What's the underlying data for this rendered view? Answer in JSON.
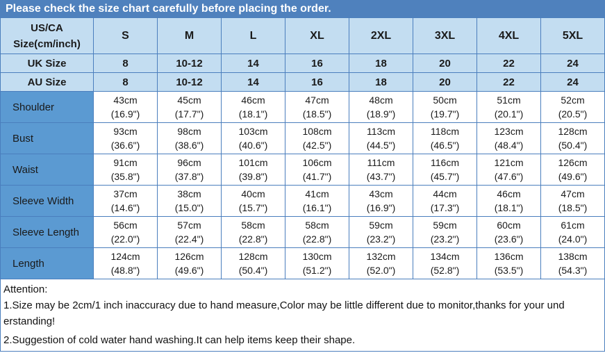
{
  "banner": {
    "text": "Please check the size chart carefully before placing the order."
  },
  "colors": {
    "banner_bg": "#4f81bd",
    "header_cell_bg": "#c3ddf1",
    "label_cell_bg": "#5b9ad2",
    "grid_border": "#4a7ebd",
    "data_cell_bg": "#ffffff"
  },
  "table": {
    "corner_lines": [
      "US/CA",
      "Size(cm/inch)"
    ],
    "size_columns": [
      "S",
      "M",
      "L",
      "XL",
      "2XL",
      "3XL",
      "4XL",
      "5XL"
    ],
    "uk_row": {
      "label": "UK Size",
      "values": [
        "8",
        "10-12",
        "14",
        "16",
        "18",
        "20",
        "22",
        "24"
      ]
    },
    "au_row": {
      "label": "AU Size",
      "values": [
        "8",
        "10-12",
        "14",
        "16",
        "18",
        "20",
        "22",
        "24"
      ]
    },
    "measurement_rows": [
      {
        "label": "Shoulder",
        "values": [
          {
            "cm": "43cm",
            "inch": "(16.9\")"
          },
          {
            "cm": "45cm",
            "inch": "(17.7\")"
          },
          {
            "cm": "46cm",
            "inch": "(18.1\")"
          },
          {
            "cm": "47cm",
            "inch": "(18.5\")"
          },
          {
            "cm": "48cm",
            "inch": "(18.9\")"
          },
          {
            "cm": "50cm",
            "inch": "(19.7\")"
          },
          {
            "cm": "51cm",
            "inch": "(20.1\")"
          },
          {
            "cm": "52cm",
            "inch": "(20.5\")"
          }
        ]
      },
      {
        "label": "Bust",
        "values": [
          {
            "cm": "93cm",
            "inch": "(36.6\")"
          },
          {
            "cm": "98cm",
            "inch": "(38.6\")"
          },
          {
            "cm": "103cm",
            "inch": "(40.6\")"
          },
          {
            "cm": "108cm",
            "inch": "(42.5\")"
          },
          {
            "cm": "113cm",
            "inch": "(44.5\")"
          },
          {
            "cm": "118cm",
            "inch": "(46.5\")"
          },
          {
            "cm": "123cm",
            "inch": "(48.4\")"
          },
          {
            "cm": "128cm",
            "inch": "(50.4\")"
          }
        ]
      },
      {
        "label": "Waist",
        "values": [
          {
            "cm": "91cm",
            "inch": "(35.8\")"
          },
          {
            "cm": "96cm",
            "inch": "(37.8\")"
          },
          {
            "cm": "101cm",
            "inch": "(39.8\")"
          },
          {
            "cm": "106cm",
            "inch": "(41.7\")"
          },
          {
            "cm": "111cm",
            "inch": "(43.7\")"
          },
          {
            "cm": "116cm",
            "inch": "(45.7\")"
          },
          {
            "cm": "121cm",
            "inch": "(47.6\")"
          },
          {
            "cm": "126cm",
            "inch": "(49.6\")"
          }
        ]
      },
      {
        "label": "Sleeve Width",
        "values": [
          {
            "cm": "37cm",
            "inch": "(14.6\")"
          },
          {
            "cm": "38cm",
            "inch": "(15.0\")"
          },
          {
            "cm": "40cm",
            "inch": "(15.7\")"
          },
          {
            "cm": "41cm",
            "inch": "(16.1\")"
          },
          {
            "cm": "43cm",
            "inch": "(16.9\")"
          },
          {
            "cm": "44cm",
            "inch": "(17.3\")"
          },
          {
            "cm": "46cm",
            "inch": "(18.1\")"
          },
          {
            "cm": "47cm",
            "inch": "(18.5\")"
          }
        ]
      },
      {
        "label": "Sleeve Length",
        "values": [
          {
            "cm": "56cm",
            "inch": "(22.0\")"
          },
          {
            "cm": "57cm",
            "inch": "(22.4\")"
          },
          {
            "cm": "58cm",
            "inch": "(22.8\")"
          },
          {
            "cm": "58cm",
            "inch": "(22.8\")"
          },
          {
            "cm": "59cm",
            "inch": "(23.2\")"
          },
          {
            "cm": "59cm",
            "inch": "(23.2\")"
          },
          {
            "cm": "60cm",
            "inch": "(23.6\")"
          },
          {
            "cm": "61cm",
            "inch": "(24.0\")"
          }
        ]
      },
      {
        "label": "Length",
        "values": [
          {
            "cm": "124cm",
            "inch": "(48.8\")"
          },
          {
            "cm": "126cm",
            "inch": "(49.6\")"
          },
          {
            "cm": "128cm",
            "inch": "(50.4\")"
          },
          {
            "cm": "130cm",
            "inch": "(51.2\")"
          },
          {
            "cm": "132cm",
            "inch": "(52.0\")"
          },
          {
            "cm": "134cm",
            "inch": "(52.8\")"
          },
          {
            "cm": "136cm",
            "inch": "(53.5\")"
          },
          {
            "cm": "138cm",
            "inch": "(54.3\")"
          }
        ]
      }
    ]
  },
  "attention": {
    "lines": [
      "Attention:",
      "1.Size may be 2cm/1 inch inaccuracy due to hand measure,Color may be little different due to monitor,thanks for your und",
      "erstanding!",
      "2.Suggestion of cold water hand washing.It can help items keep their shape."
    ]
  }
}
